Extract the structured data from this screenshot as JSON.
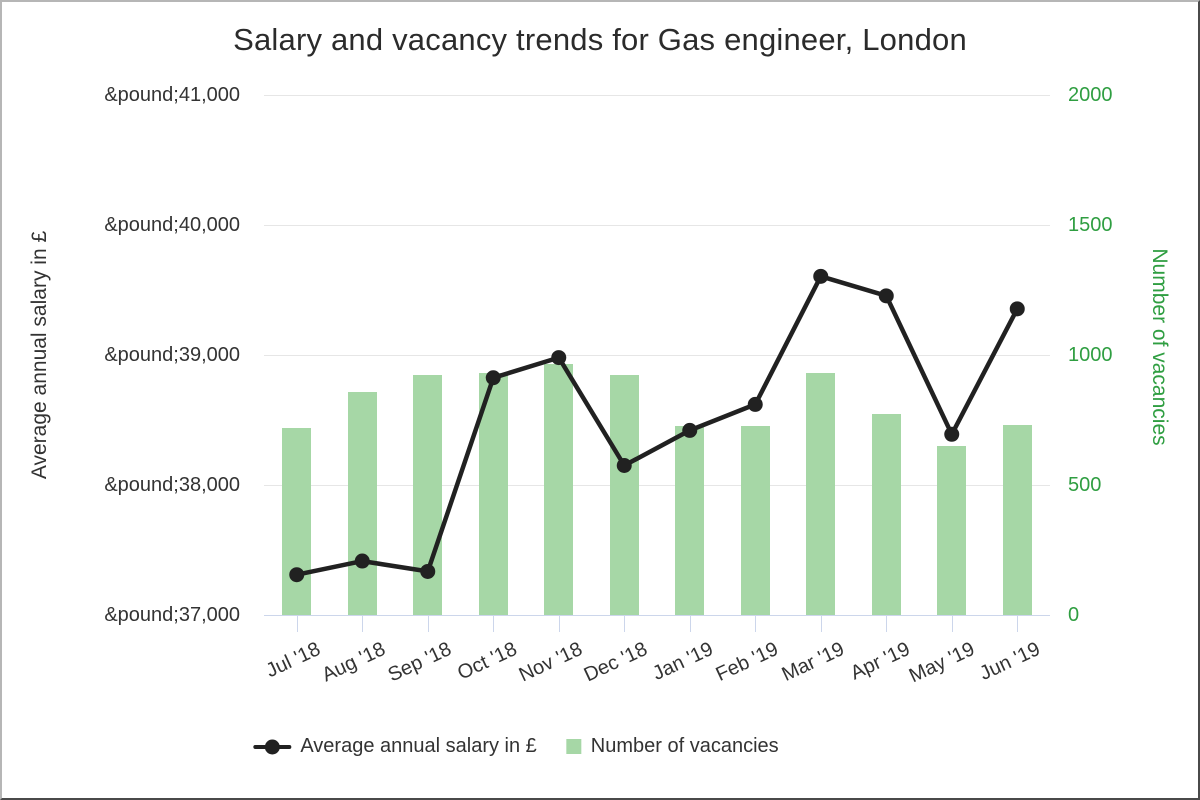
{
  "title": "Salary and vacancy trends for Gas engineer, London",
  "colors": {
    "bar_green": "#a6d7a6",
    "axis_green": "#2f9e41",
    "line_black": "#212121",
    "gridline": "#e6e6e6",
    "axis_line": "#ccd6eb",
    "text": "#333333"
  },
  "chart_data": {
    "type": "combo",
    "subtype": [
      "line",
      "bar"
    ],
    "categories": [
      "Jul '18",
      "Aug '18",
      "Sep '18",
      "Oct '18",
      "Nov '18",
      "Dec '18",
      "Jan '19",
      "Feb '19",
      "Mar '19",
      "Apr '19",
      "May '19",
      "Jun '19"
    ],
    "series": [
      {
        "name": "Average annual salary in £",
        "type": "line",
        "axis": "left",
        "color": "#212121",
        "values": [
          37310,
          37415,
          37335,
          38825,
          38980,
          38150,
          38420,
          38620,
          39605,
          39455,
          38390,
          39355
        ]
      },
      {
        "name": "Number of vacancies",
        "type": "bar",
        "axis": "right",
        "color": "#a6d7a6",
        "values": [
          720,
          858,
          925,
          930,
          966,
          922,
          726,
          727,
          932,
          773,
          650,
          732
        ]
      }
    ],
    "left_axis": {
      "title": "Average annual salary in £",
      "min": 37000,
      "max": 41000,
      "tick_step": 1000,
      "tick_labels": [
        "&pound;41,000",
        "&pound;40,000",
        "&pound;39,000",
        "&pound;38,000",
        "&pound;37,000"
      ]
    },
    "right_axis": {
      "title": "Number of vacancies",
      "min": 0,
      "max": 2000,
      "tick_step": 500,
      "tick_labels": [
        "2000",
        "1500",
        "1000",
        "500",
        "0"
      ]
    },
    "grid": "horizontal-only",
    "legend_position": "bottom-center"
  },
  "legend": {
    "items": [
      {
        "label": "Average annual salary in £",
        "marker": "line-with-dot"
      },
      {
        "label": "Number of vacancies",
        "marker": "green-square"
      }
    ]
  }
}
